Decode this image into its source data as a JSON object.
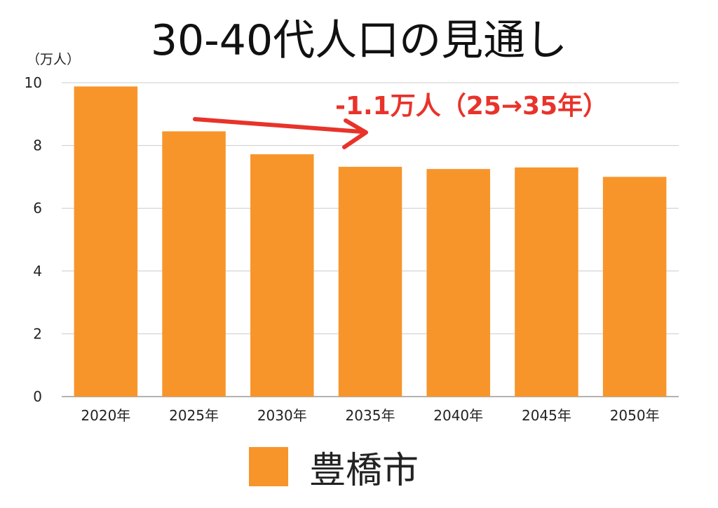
{
  "chart_data": {
    "type": "bar",
    "title": "30-40代人口の見通し",
    "ylabel": "（万人）",
    "categories": [
      "2020年",
      "2025年",
      "2030年",
      "2035年",
      "2040年",
      "2045年",
      "2050年"
    ],
    "series": [
      {
        "name": "豊橋市",
        "values": [
          9.88,
          8.45,
          7.72,
          7.32,
          7.25,
          7.3,
          7.0
        ]
      }
    ],
    "ylim": [
      0,
      10
    ],
    "yticks": [
      0,
      2,
      4,
      6,
      8,
      10
    ],
    "grid": true,
    "legend": "bottom",
    "annotation": "-1.1万人（25→35年）",
    "colors": {
      "bar": "#f7952b",
      "annotation": "#e8332a",
      "grid": "#cccccc"
    }
  }
}
